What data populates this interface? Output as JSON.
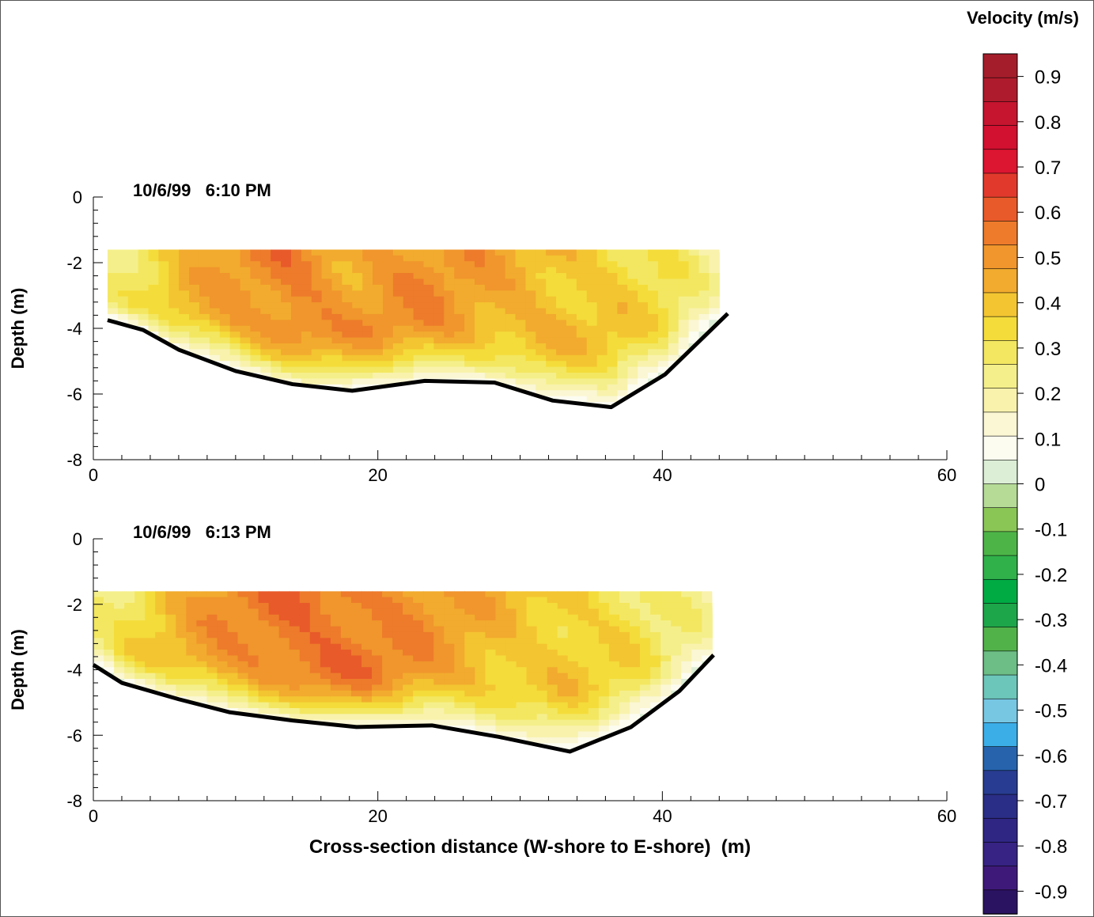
{
  "colorbar": {
    "title": "Velocity (m/s)",
    "tick_labels": [
      "0.9",
      "0.8",
      "0.7",
      "0.6",
      "0.5",
      "0.4",
      "0.3",
      "0.2",
      "0.1",
      "0",
      "-0.1",
      "-0.2",
      "-0.3",
      "-0.4",
      "-0.5",
      "-0.6",
      "-0.7",
      "-0.8",
      "-0.9"
    ],
    "levels": [
      0.9,
      0.8,
      0.7,
      0.6,
      0.5,
      0.4,
      0.3,
      0.2,
      0.1,
      0,
      -0.1,
      -0.2,
      -0.3,
      -0.4,
      -0.5,
      -0.6,
      -0.7,
      -0.8,
      -0.9
    ],
    "colors": [
      "#a41d2a",
      "#ae1b2c",
      "#c5152f",
      "#d2102f",
      "#dc1531",
      "#e13a2c",
      "#e85a2a",
      "#ed7b2b",
      "#f0962c",
      "#f2ab2e",
      "#f3c531",
      "#f4dc3a",
      "#f3e761",
      "#f5ef8b",
      "#f8f2ad",
      "#fbf7d4",
      "#fcfcf1",
      "#dceed6",
      "#b5db97",
      "#89c656",
      "#4db548",
      "#30b14a",
      "#00ab44",
      "#1da64a",
      "#52b24a",
      "#6cbd86",
      "#6cc6b9",
      "#77c7e3",
      "#3baee7",
      "#2763ad",
      "#283d91",
      "#2b2e86",
      "#2f2684",
      "#362383",
      "#3e1979",
      "#2a1361"
    ]
  },
  "xlabel": "Cross-section distance (W-shore to E-shore)  (m)",
  "ylabel": "Depth (m)",
  "chart_data": [
    {
      "type": "heatmap",
      "title": "10/6/99   6:10 PM",
      "xlabel": "",
      "ylabel": "Depth (m)",
      "xlim": [
        0,
        60
      ],
      "ylim": [
        -8,
        0
      ],
      "x_ticks": [
        "0",
        "20",
        "40",
        "60"
      ],
      "y_ticks": [
        "0",
        "-2",
        "-4",
        "-6",
        "-8"
      ],
      "measured_x_range": [
        1,
        44
      ],
      "measured_top_depth": -1.6,
      "bed_profile": {
        "x": [
          1,
          3.5,
          6,
          10,
          14,
          18.2,
          23.3,
          28.2,
          32.3,
          36.4,
          40.2,
          44.6
        ],
        "y": [
          -3.75,
          -4.05,
          -4.65,
          -5.3,
          -5.7,
          -5.9,
          -5.6,
          -5.65,
          -6.2,
          -6.4,
          -5.4,
          -3.55
        ]
      },
      "velocity_profile": {
        "x": [
          1,
          5,
          10,
          14,
          18,
          23,
          28,
          32,
          36,
          40,
          44
        ],
        "v": [
          0.25,
          0.35,
          0.45,
          0.52,
          0.45,
          0.47,
          0.43,
          0.4,
          0.36,
          0.3,
          0.15
        ]
      }
    },
    {
      "type": "heatmap",
      "title": "10/6/99   6:13 PM",
      "xlabel": "Cross-section distance (W-shore to E-shore)  (m)",
      "ylabel": "Depth (m)",
      "xlim": [
        0,
        60
      ],
      "ylim": [
        -8,
        0
      ],
      "x_ticks": [
        "0",
        "20",
        "40",
        "60"
      ],
      "y_ticks": [
        "0",
        "-2",
        "-4",
        "-6",
        "-8"
      ],
      "measured_x_range": [
        0,
        43.5
      ],
      "measured_top_depth": -1.6,
      "bed_profile": {
        "x": [
          0,
          2,
          6,
          9.6,
          14,
          18.5,
          23.8,
          28.5,
          33.5,
          37.8,
          41.2,
          43.6
        ],
        "y": [
          -3.85,
          -4.4,
          -4.9,
          -5.3,
          -5.55,
          -5.75,
          -5.7,
          -6.05,
          -6.5,
          -5.75,
          -4.65,
          -3.55
        ]
      },
      "velocity_profile": {
        "x": [
          0,
          5,
          10,
          14,
          18,
          22,
          26,
          30,
          34,
          38,
          43
        ],
        "v": [
          0.25,
          0.38,
          0.48,
          0.55,
          0.53,
          0.48,
          0.42,
          0.38,
          0.36,
          0.3,
          0.18
        ]
      }
    }
  ]
}
